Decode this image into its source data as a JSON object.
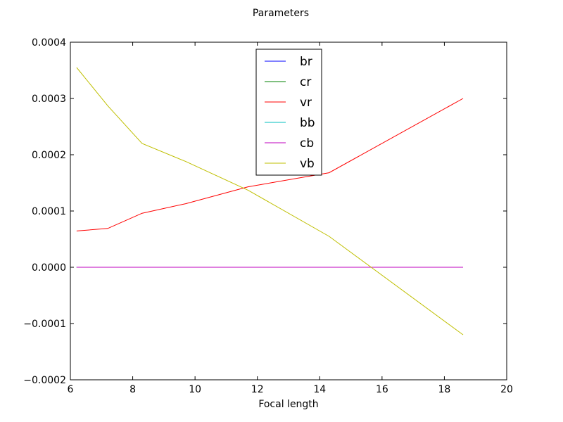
{
  "chart_data": {
    "type": "line",
    "title": "Parameters",
    "xlabel": "Focal length",
    "ylabel": "",
    "xlim": [
      6,
      20
    ],
    "ylim": [
      -0.0002,
      0.0004
    ],
    "xticks": [
      6,
      8,
      10,
      12,
      14,
      16,
      18,
      20
    ],
    "xtick_labels": [
      "6",
      "8",
      "10",
      "12",
      "14",
      "16",
      "18",
      "20"
    ],
    "yticks": [
      -0.0002,
      -0.0001,
      0.0,
      0.0001,
      0.0002,
      0.0003,
      0.0004
    ],
    "ytick_labels": [
      "−0.0002",
      "−0.0001",
      "0.0000",
      "0.0001",
      "0.0002",
      "0.0003",
      "0.0004"
    ],
    "grid": false,
    "legend_position": "top-center",
    "x": [
      6.2,
      7.2,
      8.3,
      9.7,
      11.7,
      14.3,
      18.6
    ],
    "series": [
      {
        "name": "br",
        "color": "#0000ff",
        "values": [
          0,
          0,
          0,
          0,
          0,
          0,
          0
        ]
      },
      {
        "name": "cr",
        "color": "#008000",
        "values": [
          0,
          0,
          0,
          0,
          0,
          0,
          0
        ]
      },
      {
        "name": "vr",
        "color": "#ff0000",
        "values": [
          6.45e-05,
          6.9e-05,
          9.6e-05,
          0.000113,
          0.000143,
          0.000168,
          0.0003
        ]
      },
      {
        "name": "bb",
        "color": "#00bfbf",
        "values": [
          0,
          0,
          0,
          0,
          0,
          0,
          0
        ]
      },
      {
        "name": "cb",
        "color": "#bf00bf",
        "values": [
          0,
          0,
          0,
          0,
          0,
          0,
          0
        ]
      },
      {
        "name": "vb",
        "color": "#bfbf00",
        "values": [
          0.000355,
          0.000287,
          0.00022,
          0.000188,
          0.000137,
          5.5e-05,
          -0.00012
        ]
      }
    ]
  }
}
